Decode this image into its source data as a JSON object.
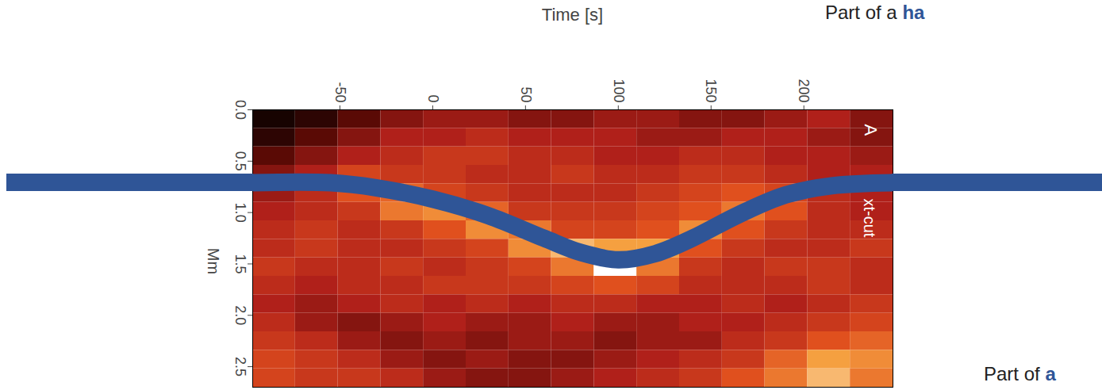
{
  "chart_data": {
    "type": "heatmap",
    "x_label": "Time [s]",
    "y_label": "Mm",
    "xlim": [
      -97,
      248
    ],
    "ylim": [
      0,
      2.7
    ],
    "xticks": [
      -50,
      0,
      50,
      100,
      150,
      200
    ],
    "yticks": [
      {
        "value": 0,
        "label": "0.0"
      },
      0.5,
      {
        "value": 1,
        "label": "1.0"
      },
      1.5,
      {
        "value": 2,
        "label": "2.0"
      },
      2.5
    ],
    "grid": false,
    "panel_label": "A",
    "annotations": [
      "xt-cut"
    ],
    "cells": {
      "x_edges": [
        -97,
        -74,
        -51,
        -28,
        -5,
        18,
        41,
        64,
        87,
        110,
        133,
        156,
        179,
        202,
        225,
        248
      ],
      "y_edges": [
        0,
        0.18,
        0.36,
        0.54,
        0.72,
        0.9,
        1.08,
        1.26,
        1.44,
        1.62,
        1.8,
        1.98,
        2.16,
        2.34,
        2.52,
        2.7
      ],
      "zlim": [
        0,
        1
      ],
      "values": [
        [
          0.05,
          0.1,
          0.2,
          0.3,
          0.35,
          0.35,
          0.3,
          0.3,
          0.35,
          0.35,
          0.3,
          0.3,
          0.35,
          0.4,
          0.3
        ],
        [
          0.1,
          0.2,
          0.3,
          0.4,
          0.4,
          0.45,
          0.4,
          0.4,
          0.4,
          0.35,
          0.35,
          0.4,
          0.4,
          0.35,
          0.3
        ],
        [
          0.2,
          0.3,
          0.4,
          0.45,
          0.5,
          0.5,
          0.45,
          0.45,
          0.4,
          0.4,
          0.45,
          0.45,
          0.4,
          0.4,
          0.35
        ],
        [
          0.3,
          0.4,
          0.55,
          0.5,
          0.5,
          0.45,
          0.45,
          0.5,
          0.45,
          0.45,
          0.5,
          0.5,
          0.45,
          0.4,
          0.4
        ],
        [
          0.35,
          0.45,
          0.6,
          0.65,
          0.55,
          0.5,
          0.45,
          0.45,
          0.45,
          0.5,
          0.55,
          0.6,
          0.55,
          0.45,
          0.4
        ],
        [
          0.4,
          0.45,
          0.5,
          0.7,
          0.75,
          0.65,
          0.5,
          0.5,
          0.5,
          0.55,
          0.6,
          0.7,
          0.6,
          0.45,
          0.4
        ],
        [
          0.45,
          0.5,
          0.45,
          0.5,
          0.6,
          0.75,
          0.7,
          0.55,
          0.55,
          0.6,
          0.75,
          0.6,
          0.5,
          0.45,
          0.45
        ],
        [
          0.45,
          0.5,
          0.45,
          0.45,
          0.5,
          0.55,
          0.75,
          0.85,
          0.8,
          0.8,
          0.6,
          0.5,
          0.45,
          0.45,
          0.5
        ],
        [
          0.5,
          0.45,
          0.45,
          0.5,
          0.45,
          0.5,
          0.55,
          0.7,
          1.0,
          0.7,
          0.5,
          0.45,
          0.5,
          0.5,
          0.45
        ],
        [
          0.45,
          0.4,
          0.45,
          0.45,
          0.5,
          0.5,
          0.5,
          0.55,
          0.6,
          0.55,
          0.45,
          0.45,
          0.45,
          0.5,
          0.45
        ],
        [
          0.4,
          0.35,
          0.4,
          0.45,
          0.4,
          0.45,
          0.4,
          0.45,
          0.45,
          0.4,
          0.4,
          0.45,
          0.4,
          0.45,
          0.5
        ],
        [
          0.45,
          0.35,
          0.3,
          0.35,
          0.4,
          0.35,
          0.35,
          0.4,
          0.35,
          0.35,
          0.4,
          0.4,
          0.45,
          0.5,
          0.55
        ],
        [
          0.5,
          0.45,
          0.35,
          0.3,
          0.35,
          0.3,
          0.35,
          0.35,
          0.3,
          0.35,
          0.35,
          0.45,
          0.5,
          0.6,
          0.65
        ],
        [
          0.55,
          0.5,
          0.45,
          0.35,
          0.3,
          0.35,
          0.3,
          0.3,
          0.35,
          0.4,
          0.45,
          0.5,
          0.65,
          0.8,
          0.75
        ],
        [
          0.55,
          0.5,
          0.5,
          0.45,
          0.35,
          0.3,
          0.3,
          0.35,
          0.4,
          0.45,
          0.5,
          0.6,
          0.7,
          0.85,
          0.7
        ]
      ]
    },
    "curve": {
      "color": "#2f5597",
      "x": [
        -97,
        -55,
        -30,
        0,
        30,
        60,
        80,
        100,
        120,
        140,
        165,
        190,
        215,
        248
      ],
      "y": [
        0.71,
        0.71,
        0.76,
        0.87,
        1.03,
        1.25,
        1.39,
        1.46,
        1.4,
        1.25,
        1.02,
        0.83,
        0.74,
        0.71
      ]
    }
  },
  "slide_text": [
    {
      "plain": "Part of a ",
      "emphasis": "ha"
    },
    {
      "plain": "Part of ",
      "emphasis": "a"
    }
  ]
}
